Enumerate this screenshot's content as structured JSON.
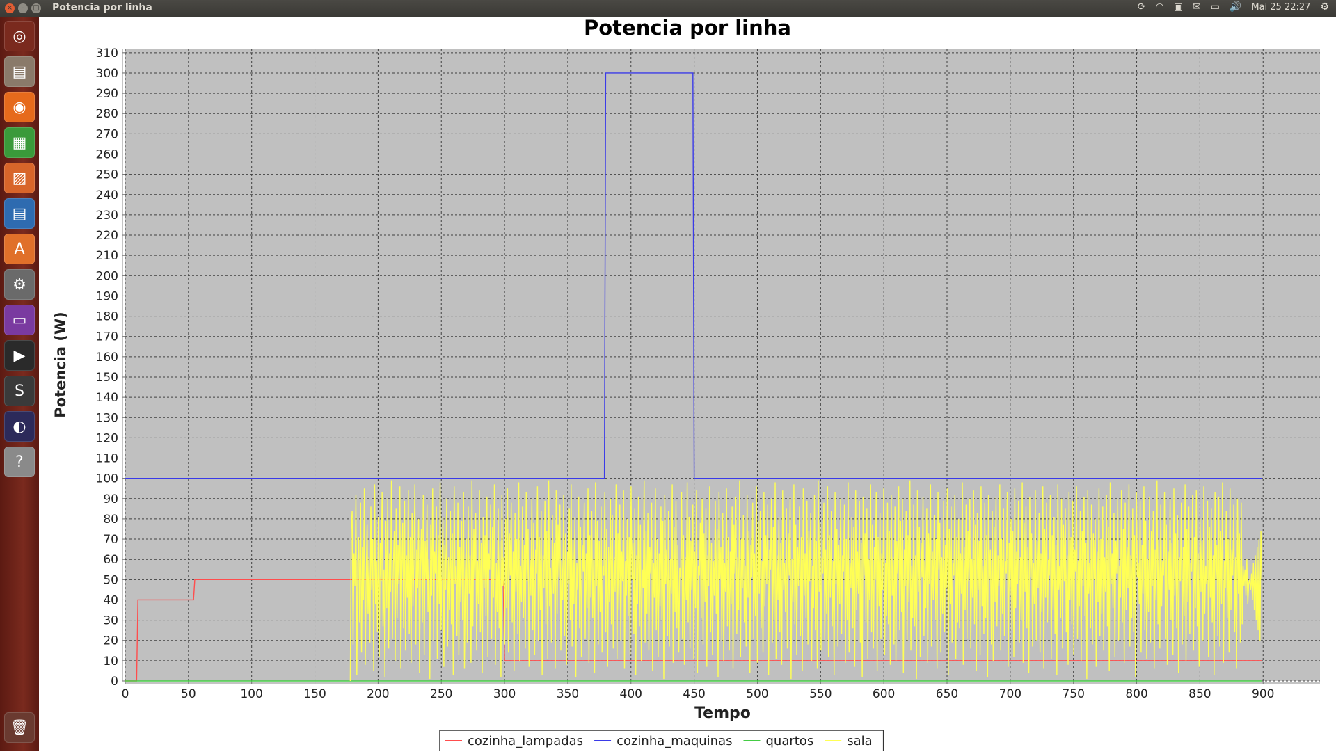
{
  "window": {
    "title": "Potencia por linha",
    "clock": "Mai 25 22:27"
  },
  "launcher": {
    "items": [
      {
        "name": "ubuntu-dash-icon",
        "glyph": "◎",
        "color": "#7a2a1e"
      },
      {
        "name": "files-icon",
        "glyph": "▤",
        "color": "#8a7a6a"
      },
      {
        "name": "firefox-icon",
        "glyph": "◉",
        "color": "#e66a1c"
      },
      {
        "name": "calc-icon",
        "glyph": "▦",
        "color": "#3a9a3a"
      },
      {
        "name": "impress-icon",
        "glyph": "▨",
        "color": "#d8652a"
      },
      {
        "name": "writer-icon",
        "glyph": "▤",
        "color": "#2e6bb0"
      },
      {
        "name": "software-center-icon",
        "glyph": "A",
        "color": "#e0702a"
      },
      {
        "name": "settings-icon",
        "glyph": "⚙",
        "color": "#6a6a6a"
      },
      {
        "name": "workspace-icon",
        "glyph": "▭",
        "color": "#7a3aa0"
      },
      {
        "name": "terminal-icon",
        "glyph": "▶",
        "color": "#2a2a2a"
      },
      {
        "name": "sublime-icon",
        "glyph": "S",
        "color": "#3a3a3a"
      },
      {
        "name": "eclipse-icon",
        "glyph": "◐",
        "color": "#2c2a5a"
      },
      {
        "name": "help-icon",
        "glyph": "?",
        "color": "#8a8a8a"
      }
    ],
    "trash_glyph": "🗑"
  },
  "chart_data": {
    "type": "line",
    "title": "Potencia por linha",
    "xlabel": "Tempo",
    "ylabel": "Potencia (W)",
    "xlim": [
      0,
      945
    ],
    "ylim": [
      0,
      312
    ],
    "xticks": [
      0,
      50,
      100,
      150,
      200,
      250,
      300,
      350,
      400,
      450,
      500,
      550,
      600,
      650,
      700,
      750,
      800,
      850,
      900
    ],
    "yticks": [
      0,
      10,
      20,
      30,
      40,
      50,
      60,
      70,
      80,
      90,
      100,
      110,
      120,
      130,
      140,
      150,
      160,
      170,
      180,
      190,
      200,
      210,
      220,
      230,
      240,
      250,
      260,
      270,
      280,
      290,
      300,
      310
    ],
    "grid": true,
    "legend_position": "bottom",
    "series": [
      {
        "name": "cozinha_lampadas",
        "color": "#ff4d4d",
        "x": [
          0,
          9,
          10,
          54,
          55,
          299,
          300,
          899
        ],
        "y": [
          0,
          0,
          40,
          40,
          50,
          50,
          10,
          10
        ]
      },
      {
        "name": "cozinha_maquinas",
        "color": "#3a3ae8",
        "x": [
          0,
          379,
          380,
          449,
          450,
          899
        ],
        "y": [
          100,
          100,
          300,
          300,
          100,
          100
        ]
      },
      {
        "name": "quartos",
        "color": "#44cc44",
        "x": [
          0,
          899
        ],
        "y": [
          0,
          0
        ]
      },
      {
        "name": "sala",
        "color": "#ffff55",
        "x_start": 178,
        "x_end": 899,
        "y": [
          0,
          75,
          84,
          18,
          63,
          47,
          92,
          3,
          58,
          71,
          29,
          88,
          14,
          66,
          40,
          95,
          8,
          52,
          77,
          33,
          61,
          19,
          86,
          45,
          70,
          5,
          97,
          38,
          59,
          24,
          81,
          12,
          68,
          49,
          93,
          27,
          55,
          2,
          79,
          36,
          90,
          16,
          63,
          44,
          99,
          21,
          57,
          74,
          10,
          85,
          31,
          67,
          48,
          96,
          6,
          53,
          78,
          26,
          89,
          15,
          62,
          41,
          94,
          23,
          71,
          9,
          83,
          37,
          58,
          97,
          18,
          65,
          46,
          80,
          4,
          56,
          75,
          29,
          92,
          13,
          69,
          50,
          87,
          34,
          60,
          1,
          77,
          42,
          95,
          20,
          64,
          53,
          86,
          11,
          72,
          38,
          98,
          25,
          58,
          81,
          7,
          67,
          45,
          90,
          17,
          61,
          35,
          84,
          28,
          73,
          3,
          96,
          48,
          57,
          22,
          88,
          13,
          66,
          39,
          79,
          30,
          93,
          6,
          54,
          70,
          19,
          86,
          43,
          62,
          9,
          99,
          27,
          75,
          50,
          83,
          15,
          59,
          38,
          94,
          24,
          68,
          4,
          81,
          46,
          72,
          32,
          91,
          12,
          63,
          55,
          87,
          21,
          76,
          41,
          97,
          8,
          58,
          34,
          85,
          26,
          69,
          2,
          92,
          47,
          61,
          18,
          80,
          36,
          95,
          14,
          73,
          52,
          88,
          29,
          64,
          5,
          83,
          44,
          70,
          23,
          98,
          10,
          57,
          39,
          86,
          31,
          67,
          16,
          93,
          49,
          75,
          7,
          60,
          42,
          90,
          25,
          78,
          13,
          65,
          53,
          96,
          20,
          71,
          35,
          84,
          3,
          62,
          46,
          89,
          28,
          74,
          11,
          99,
          37,
          56,
          19,
          82,
          43,
          68,
          6,
          94,
          33,
          77,
          51,
          87,
          15,
          59,
          40,
          92,
          22,
          73,
          8,
          64,
          48,
          85,
          30,
          97,
          17,
          70,
          38,
          81,
          2,
          58,
          45,
          91,
          26,
          76,
          12,
          67,
          54,
          88,
          21,
          63,
          36,
          95,
          9,
          72,
          41,
          84,
          31,
          60,
          4,
          98,
          47,
          79,
          18,
          69,
          34,
          86,
          14,
          57,
          52,
          93,
          24,
          75,
          7,
          66,
          39,
          90,
          28,
          82,
          16,
          61,
          44,
          97,
          11,
          73,
          35,
          87,
          20,
          64,
          49,
          94,
          6,
          59,
          42,
          80,
          32,
          71,
          13,
          96,
          50,
          68,
          23,
          85,
          3,
          62,
          38,
          91,
          27,
          77,
          10,
          55,
          46,
          99,
          19,
          74,
          33,
          83,
          15,
          66,
          53,
          88,
          5,
          58,
          41,
          95,
          25,
          70,
          12,
          63,
          37,
          86,
          30,
          79,
          1,
          92,
          48,
          65,
          22,
          84,
          17,
          60,
          43,
          97,
          9,
          76,
          34,
          89,
          26,
          67,
          14,
          56,
          51,
          93,
          21,
          72,
          8,
          61,
          40,
          98,
          29,
          81,
          16,
          69,
          45,
          87,
          11,
          64,
          36,
          94,
          4,
          57,
          52,
          78,
          31,
          90,
          18,
          73,
          39,
          85,
          7,
          62,
          47,
          96,
          24,
          68,
          13,
          59,
          42,
          89,
          33,
          75,
          2,
          93,
          50,
          66,
          20,
          83,
          10,
          58,
          44,
          95,
          27,
          71,
          15,
          64,
          38,
          86,
          6,
          77,
          53,
          91,
          23,
          61,
          35,
          99,
          12,
          70,
          46,
          82,
          29,
          57,
          17,
          92,
          41,
          74,
          4,
          67,
          51,
          88,
          21,
          63,
          32,
          96,
          9,
          79,
          43,
          84,
          26,
          59,
          14,
          93,
          37,
          72,
          48,
          87,
          3,
          65,
          55,
          90,
          19,
          76,
          30,
          98,
          11,
          62,
          40,
          81,
          24,
          68,
          8,
          94,
          45,
          58,
          34,
          85,
          16,
          73,
          52,
          91,
          1,
          60,
          39,
          97,
          28,
          77,
          13,
          66,
          47,
          86,
          22,
          71,
          5,
          95,
          42,
          63,
          31,
          89,
          18,
          74,
          49,
          83,
          10,
          57,
          36,
          92,
          25,
          69,
          6,
          99,
          44,
          78,
          15,
          61,
          53,
          88,
          20,
          65,
          33,
          96,
          12,
          72,
          41,
          84,
          27,
          59,
          3,
          93,
          48,
          75,
          17,
          67,
          38,
          90,
          23,
          62,
          54,
          87,
          9,
          70,
          30,
          98,
          14,
          58,
          46,
          81,
          26,
          76,
          7,
          94,
          35,
          64,
          43,
          89,
          19,
          68,
          2,
          91,
          52,
          73,
          29,
          85,
          11,
          60,
          40,
          97,
          24,
          77,
          16,
          66,
          50,
          93,
          5,
          71,
          37,
          83,
          21,
          63,
          45,
          95,
          13,
          58,
          32,
          88,
          28,
          74,
          8,
          92,
          42,
          61,
          18,
          86,
          10,
          69,
          53,
          96,
          25,
          79,
          34,
          90,
          4,
          65,
          47,
          84,
          20,
          72,
          39,
          99,
          15,
          57,
          31,
          87,
          27,
          62,
          1,
          94,
          44,
          76,
          12,
          68,
          51,
          91,
          22,
          59,
          36,
          85,
          9,
          73,
          48,
          97,
          17,
          64,
          40,
          82,
          30,
          70,
          6,
          93,
          55,
          78,
          14,
          61,
          33,
          89,
          24,
          67,
          46,
          95,
          3,
          75,
          38,
          86,
          19,
          58,
          52,
          92,
          11,
          71,
          29,
          80,
          26,
          63,
          43,
          98,
          8,
          66,
          35,
          87,
          21,
          74,
          49,
          90,
          16,
          60,
          41,
          94,
          28,
          77,
          5,
          83,
          45,
          69,
          13,
          96,
          37,
          57,
          23,
          88,
          31,
          72,
          2,
          92,
          50,
          65,
          18,
          84,
          10,
          76,
          39,
          91,
          27,
          62,
          47,
          97,
          15,
          70,
          33,
          85,
          22,
          59,
          53,
          93,
          7,
          68,
          42,
          80,
          25,
          74,
          12,
          95,
          36,
          64,
          48,
          89,
          19,
          61,
          30,
          98,
          9,
          78,
          44,
          86,
          26,
          66,
          4,
          91,
          51,
          73,
          17,
          58,
          38,
          94,
          20,
          69,
          46,
          83,
          14,
          63,
          34,
          96,
          6,
          75,
          41,
          88,
          29,
          60,
          52,
          92,
          11,
          72,
          35,
          81,
          23,
          67,
          3,
          97,
          45,
          57,
          31,
          90,
          16,
          77,
          49,
          85,
          24,
          62,
          8,
          93,
          40,
          71,
          28,
          89,
          13,
          65,
          54,
          96,
          21,
          59,
          37,
          84,
          10,
          74,
          47,
          91,
          32,
          68,
          1,
          94,
          43,
          58,
          26,
          87,
          18,
          73,
          50,
          80,
          7,
          64,
          39,
          95,
          22,
          70,
          33,
          86,
          15,
          61,
          44,
          92,
          27,
          76,
          5,
          98,
          48,
          63,
          36,
          83,
          12,
          69,
          53,
          90,
          20,
          57,
          41,
          94,
          29,
          75,
          9,
          88,
          35,
          66,
          46,
          97,
          17,
          62,
          31,
          85,
          24,
          72,
          2,
          93,
          51,
          58,
          38,
          89,
          14,
          67,
          43,
          96,
          25,
          79,
          11,
          60,
          34,
          91,
          19,
          74,
          47,
          84,
          6,
          65,
          40,
          99,
          28,
          70,
          16,
          87,
          37,
          59,
          52,
          93,
          21,
          77,
          8,
          64,
          45,
          90,
          30,
          68,
          13,
          95,
          42,
          73,
          26,
          82,
          4,
          61,
          49,
          88,
          18,
          66,
          32,
          97,
          10,
          75,
          39,
          86,
          23,
          58,
          54,
          92,
          15,
          71,
          36,
          94,
          27,
          63,
          7,
          80,
          44,
          69,
          20,
          96,
          33,
          57,
          48,
          89,
          12,
          76,
          41,
          85,
          29,
          62,
          3,
          93,
          50,
          67,
          22,
          91,
          17,
          74,
          38,
          98,
          9,
          59,
          46,
          84,
          31,
          70,
          14,
          95,
          35,
          65,
          52,
          87,
          24,
          61,
          6,
          90,
          43,
          73,
          19,
          88,
          28,
          57,
          47,
          55,
          42,
          60,
          38,
          48,
          50,
          45,
          53,
          40,
          58,
          35,
          62,
          30,
          66,
          25,
          70,
          20,
          74,
          50
        ]
      }
    ]
  },
  "legend": {
    "items": [
      {
        "label": "cozinha_lampadas",
        "color": "#ff4d4d"
      },
      {
        "label": "cozinha_maquinas",
        "color": "#3a3ae8"
      },
      {
        "label": "quartos",
        "color": "#44cc44"
      },
      {
        "label": "sala",
        "color": "#ffff55"
      }
    ]
  }
}
